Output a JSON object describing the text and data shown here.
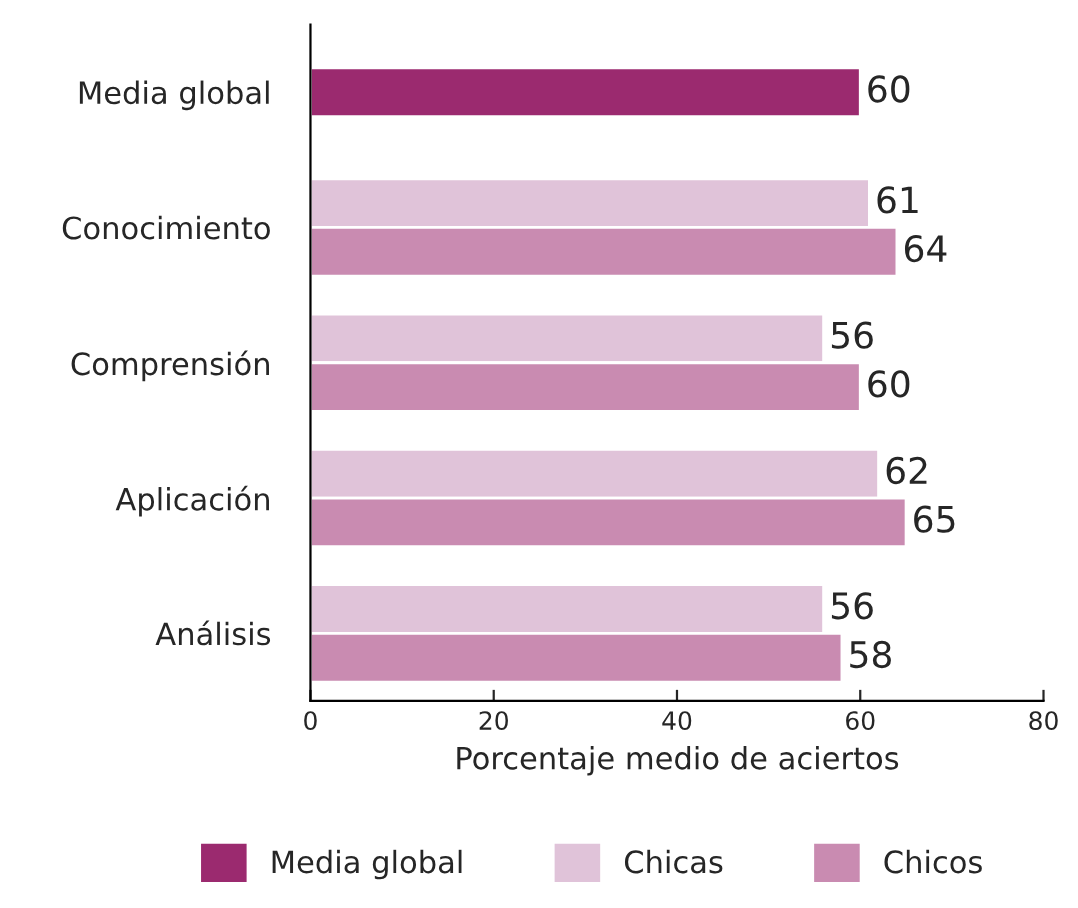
{
  "chart_data": {
    "type": "bar",
    "orientation": "horizontal",
    "xlabel": "Porcentaje medio de aciertos",
    "categories": [
      "Media global",
      "Conocimiento",
      "Comprensión",
      "Aplicación",
      "Análisis"
    ],
    "series": [
      {
        "name": "Media global",
        "color": "#9b2a6f",
        "values": [
          60,
          null,
          null,
          null,
          null
        ]
      },
      {
        "name": "Chicas",
        "color": "#e0c3d9",
        "values": [
          null,
          61,
          56,
          62,
          56
        ]
      },
      {
        "name": "Chicos",
        "color": "#c98bb1",
        "values": [
          null,
          64,
          60,
          65,
          58
        ]
      }
    ],
    "xlim": [
      0,
      80
    ],
    "xticks": [
      0,
      20,
      40,
      60,
      80
    ],
    "grid": false,
    "legend": "bottom",
    "data_labels": true
  }
}
